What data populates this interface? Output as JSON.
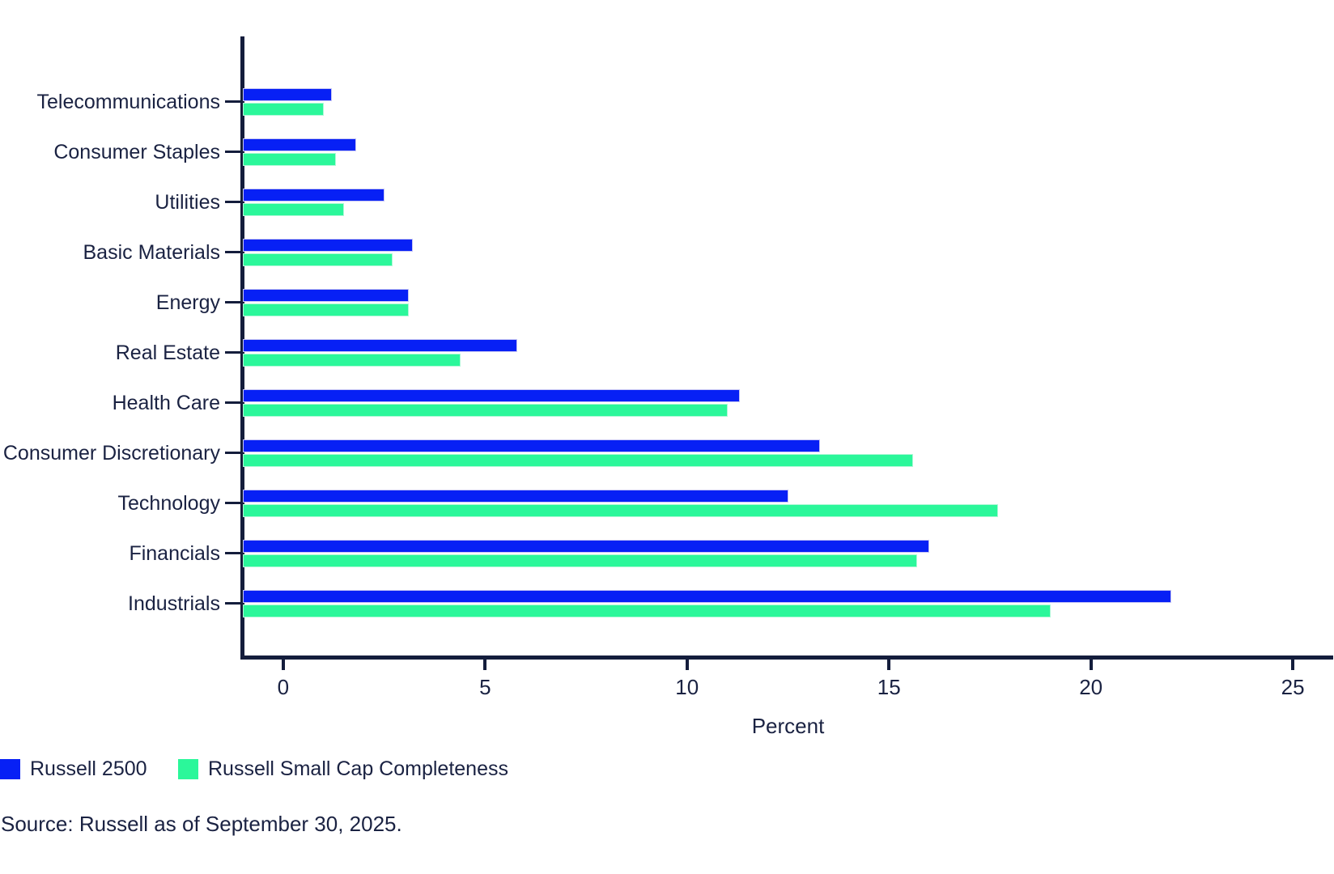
{
  "chart_data": {
    "type": "bar",
    "orientation": "horizontal",
    "title": "",
    "xlabel": "Percent",
    "ylabel": "",
    "xlim": [
      -1,
      26
    ],
    "x_ticks": [
      0,
      5,
      10,
      15,
      20,
      25
    ],
    "x_tick_labels": [
      "0",
      "5",
      "10",
      "15",
      "20",
      "25"
    ],
    "grid": false,
    "legend_position": "bottom-left",
    "categories": [
      "Telecommunications",
      "Consumer Staples",
      "Utilities",
      "Basic Materials",
      "Energy",
      "Real Estate",
      "Health Care",
      "Consumer Discretionary",
      "Technology",
      "Financials",
      "Industrials"
    ],
    "series": [
      {
        "name": "Russell 2500",
        "color": "#0720f5",
        "values": [
          1.2,
          1.8,
          2.5,
          3.2,
          3.1,
          5.8,
          11.3,
          13.3,
          12.5,
          16.0,
          22.0
        ]
      },
      {
        "name": "Russell Small Cap Completeness",
        "color": "#2bf79a",
        "values": [
          1.0,
          1.3,
          1.5,
          2.7,
          3.1,
          4.4,
          11.0,
          15.6,
          17.7,
          15.7,
          19.0
        ]
      }
    ]
  },
  "legend": {
    "items": [
      {
        "label": "Russell 2500",
        "color": "#0720f5"
      },
      {
        "label": "Russell Small Cap Completeness",
        "color": "#2bf79a"
      }
    ]
  },
  "footer": {
    "source": "Source: Russell as of September 30, 2025."
  },
  "colors": {
    "axis": "#141d3c",
    "text": "#1a2242",
    "background": "#ffffff",
    "series_blue": "#0720f5",
    "series_green": "#2bf79a"
  }
}
